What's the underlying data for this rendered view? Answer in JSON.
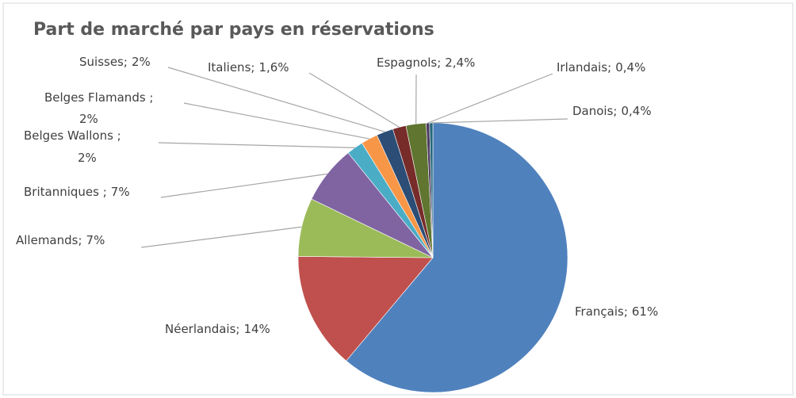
{
  "chart_data": {
    "type": "pie",
    "title": "Part de marché par pays en réservations",
    "categories": [
      "Français;",
      "Néerlandais;",
      "Allemands;",
      "Britanniques ;",
      "Belges Wallons ;",
      "Belges Flamands ;",
      "Suisses;",
      "Italiens;",
      "Espagnols;",
      "Irlandais;",
      "Danois;"
    ],
    "values": [
      61,
      14,
      7,
      7,
      2,
      2,
      2,
      1.6,
      2.4,
      0.4,
      0.4
    ],
    "value_labels": [
      "61%",
      "14%",
      "7%",
      "7%",
      "2%",
      "2%",
      "2%",
      "1,6%",
      "2,4%",
      "0,4%",
      "0,4%"
    ],
    "colors": [
      "#4f81bd",
      "#c0504d",
      "#9bbb59",
      "#8064a2",
      "#4bacc6",
      "#f79646",
      "#2c4d75",
      "#772c2a",
      "#5f7530",
      "#4d3b62",
      "#276a7c"
    ]
  }
}
